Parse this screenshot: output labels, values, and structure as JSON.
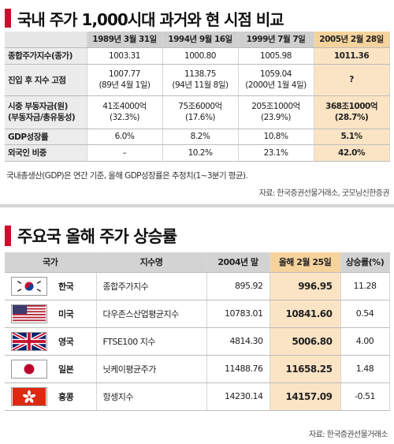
{
  "section1": {
    "title": "국내 주가 1,000시대 과거와 현 시점 비교",
    "columns": [
      "",
      "1989년 3월 31일",
      "1994년 9월 16일",
      "1999년 7월 7일",
      "2005년 2월 28일"
    ],
    "rows": [
      {
        "label": "종합주가지수(종가)",
        "cells": [
          "1003.31",
          "1000.80",
          "1005.98",
          "1011.36"
        ]
      },
      {
        "label": "진입 후 지수 고점",
        "cells": [
          [
            "1007.77",
            "(89년 4월 1일)"
          ],
          [
            "1138.75",
            "(94년 11월 8일)"
          ],
          [
            "1059.04",
            "(2000년 1월 4일)"
          ],
          [
            "?"
          ]
        ]
      },
      {
        "label": [
          "시중 부동자금(원)",
          "(부동자금/총유동성)"
        ],
        "cells": [
          [
            "41조4000억",
            "(32.3%)"
          ],
          [
            "75조6000억",
            "(17.6%)"
          ],
          [
            "205조1000억",
            "(23.9%)"
          ],
          [
            "368조1000억",
            "(28.7%)"
          ]
        ]
      },
      {
        "label": "GDP성장률",
        "cells": [
          "6.0%",
          "8.2%",
          "10.8%",
          "5.1%"
        ]
      },
      {
        "label": "외국인 비중",
        "cells": [
          "–",
          "10.2%",
          "23.1%",
          "42.0%"
        ]
      }
    ],
    "note": "국내총생산(GDP)은 연간 기준, 올해 GDP성장률은 추정치(1~3분기 평균).",
    "source": "자료: 한국증권선물거래소, 굿모닝신한증권"
  },
  "section2": {
    "title": "주요국 올해 주가 상승률",
    "columns": [
      "국가",
      "지수명",
      "2004년 말",
      "올해 2월 25일",
      "상승률(%)"
    ],
    "rows": [
      {
        "flag": "korea-flag-icon",
        "country": "한국",
        "index": "종합주가지수",
        "end2004": "895.92",
        "feb25": "996.95",
        "rate": "11.28"
      },
      {
        "flag": "usa-flag-icon",
        "country": "미국",
        "index": "다우존스산업평균지수",
        "end2004": "10783.01",
        "feb25": "10841.60",
        "rate": "0.54"
      },
      {
        "flag": "uk-flag-icon",
        "country": "영국",
        "index": "FTSE100 지수",
        "end2004": "4814.30",
        "feb25": "5006.80",
        "rate": "4.00"
      },
      {
        "flag": "japan-flag-icon",
        "country": "일본",
        "index": "닛케이평균주가",
        "end2004": "11488.76",
        "feb25": "11658.25",
        "rate": "1.48"
      },
      {
        "flag": "hongkong-flag-icon",
        "country": "홍콩",
        "index": "항셍지수",
        "end2004": "14230.14",
        "feb25": "14157.09",
        "rate": "-0.51"
      }
    ],
    "source": "자료: 한국증권선물거래소"
  }
}
